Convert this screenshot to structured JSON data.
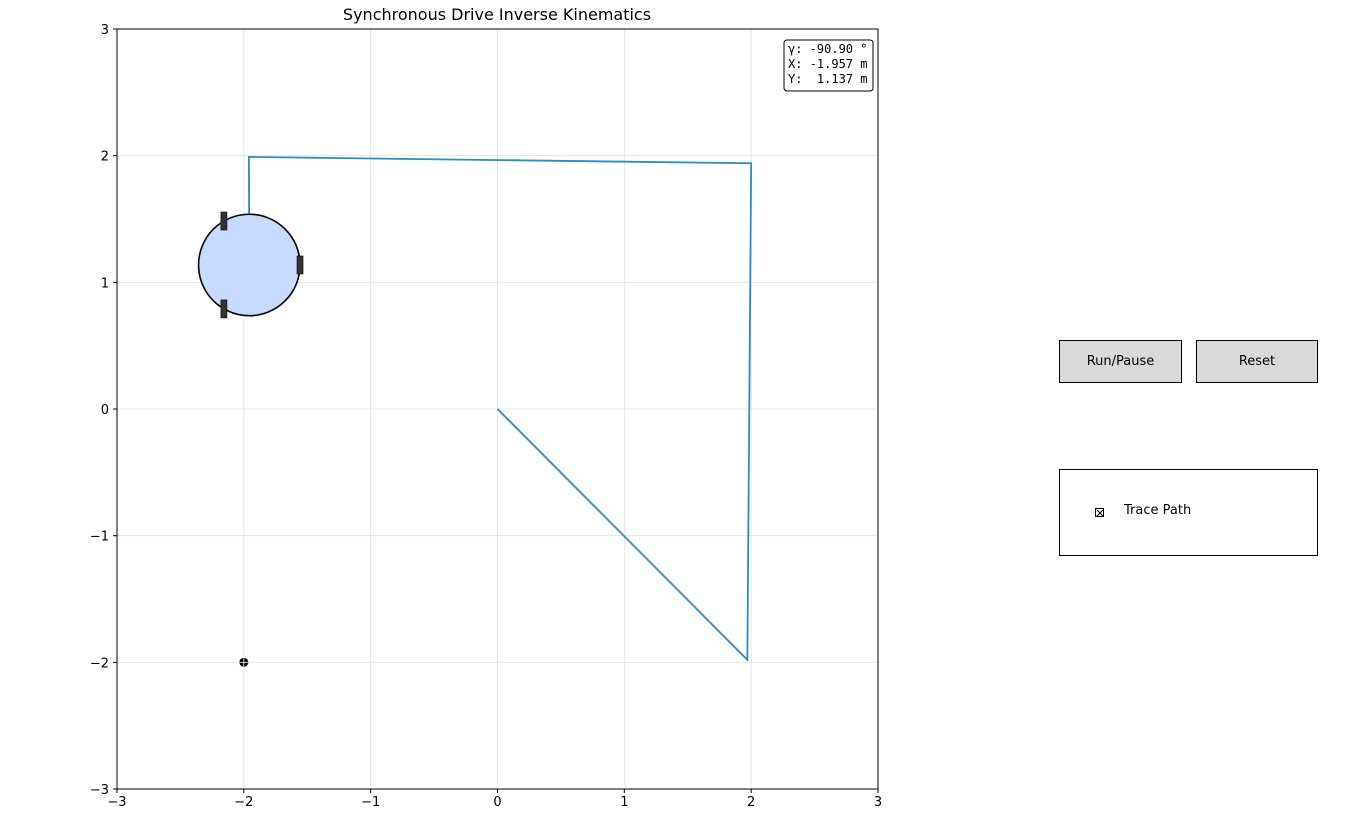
{
  "title": "Synchronous Drive Inverse Kinematics",
  "readout": {
    "gamma": "γ: -90.90 °",
    "x": "X: -1.957 m",
    "y": "Y:  1.137 m"
  },
  "controls": {
    "run_label": "Run/Pause",
    "reset_label": "Reset",
    "trace_label": "Trace Path",
    "trace_checked": true
  },
  "colors": {
    "path": "#2b8cbe",
    "robot_fill": "#c6dbff",
    "wheel": "#333333",
    "button_bg": "#d9d9d9"
  },
  "chart_data": {
    "type": "line",
    "title": "Synchronous Drive Inverse Kinematics",
    "xlim": [
      -3,
      3
    ],
    "ylim": [
      -3,
      3
    ],
    "xticks": [
      -3,
      -2,
      -1,
      0,
      1,
      2,
      3
    ],
    "yticks": [
      -3,
      -2,
      -1,
      0,
      1,
      2,
      3
    ],
    "grid": true,
    "path": {
      "x": [
        0,
        1.97,
        2.0,
        -1.96,
        -1.957
      ],
      "y": [
        0,
        -1.98,
        1.94,
        1.99,
        1.137
      ]
    },
    "robot": {
      "x": -1.957,
      "y": 1.137,
      "radius": 0.4,
      "heading_deg": -90.9
    },
    "target": {
      "x": -2.0,
      "y": -2.0
    }
  }
}
